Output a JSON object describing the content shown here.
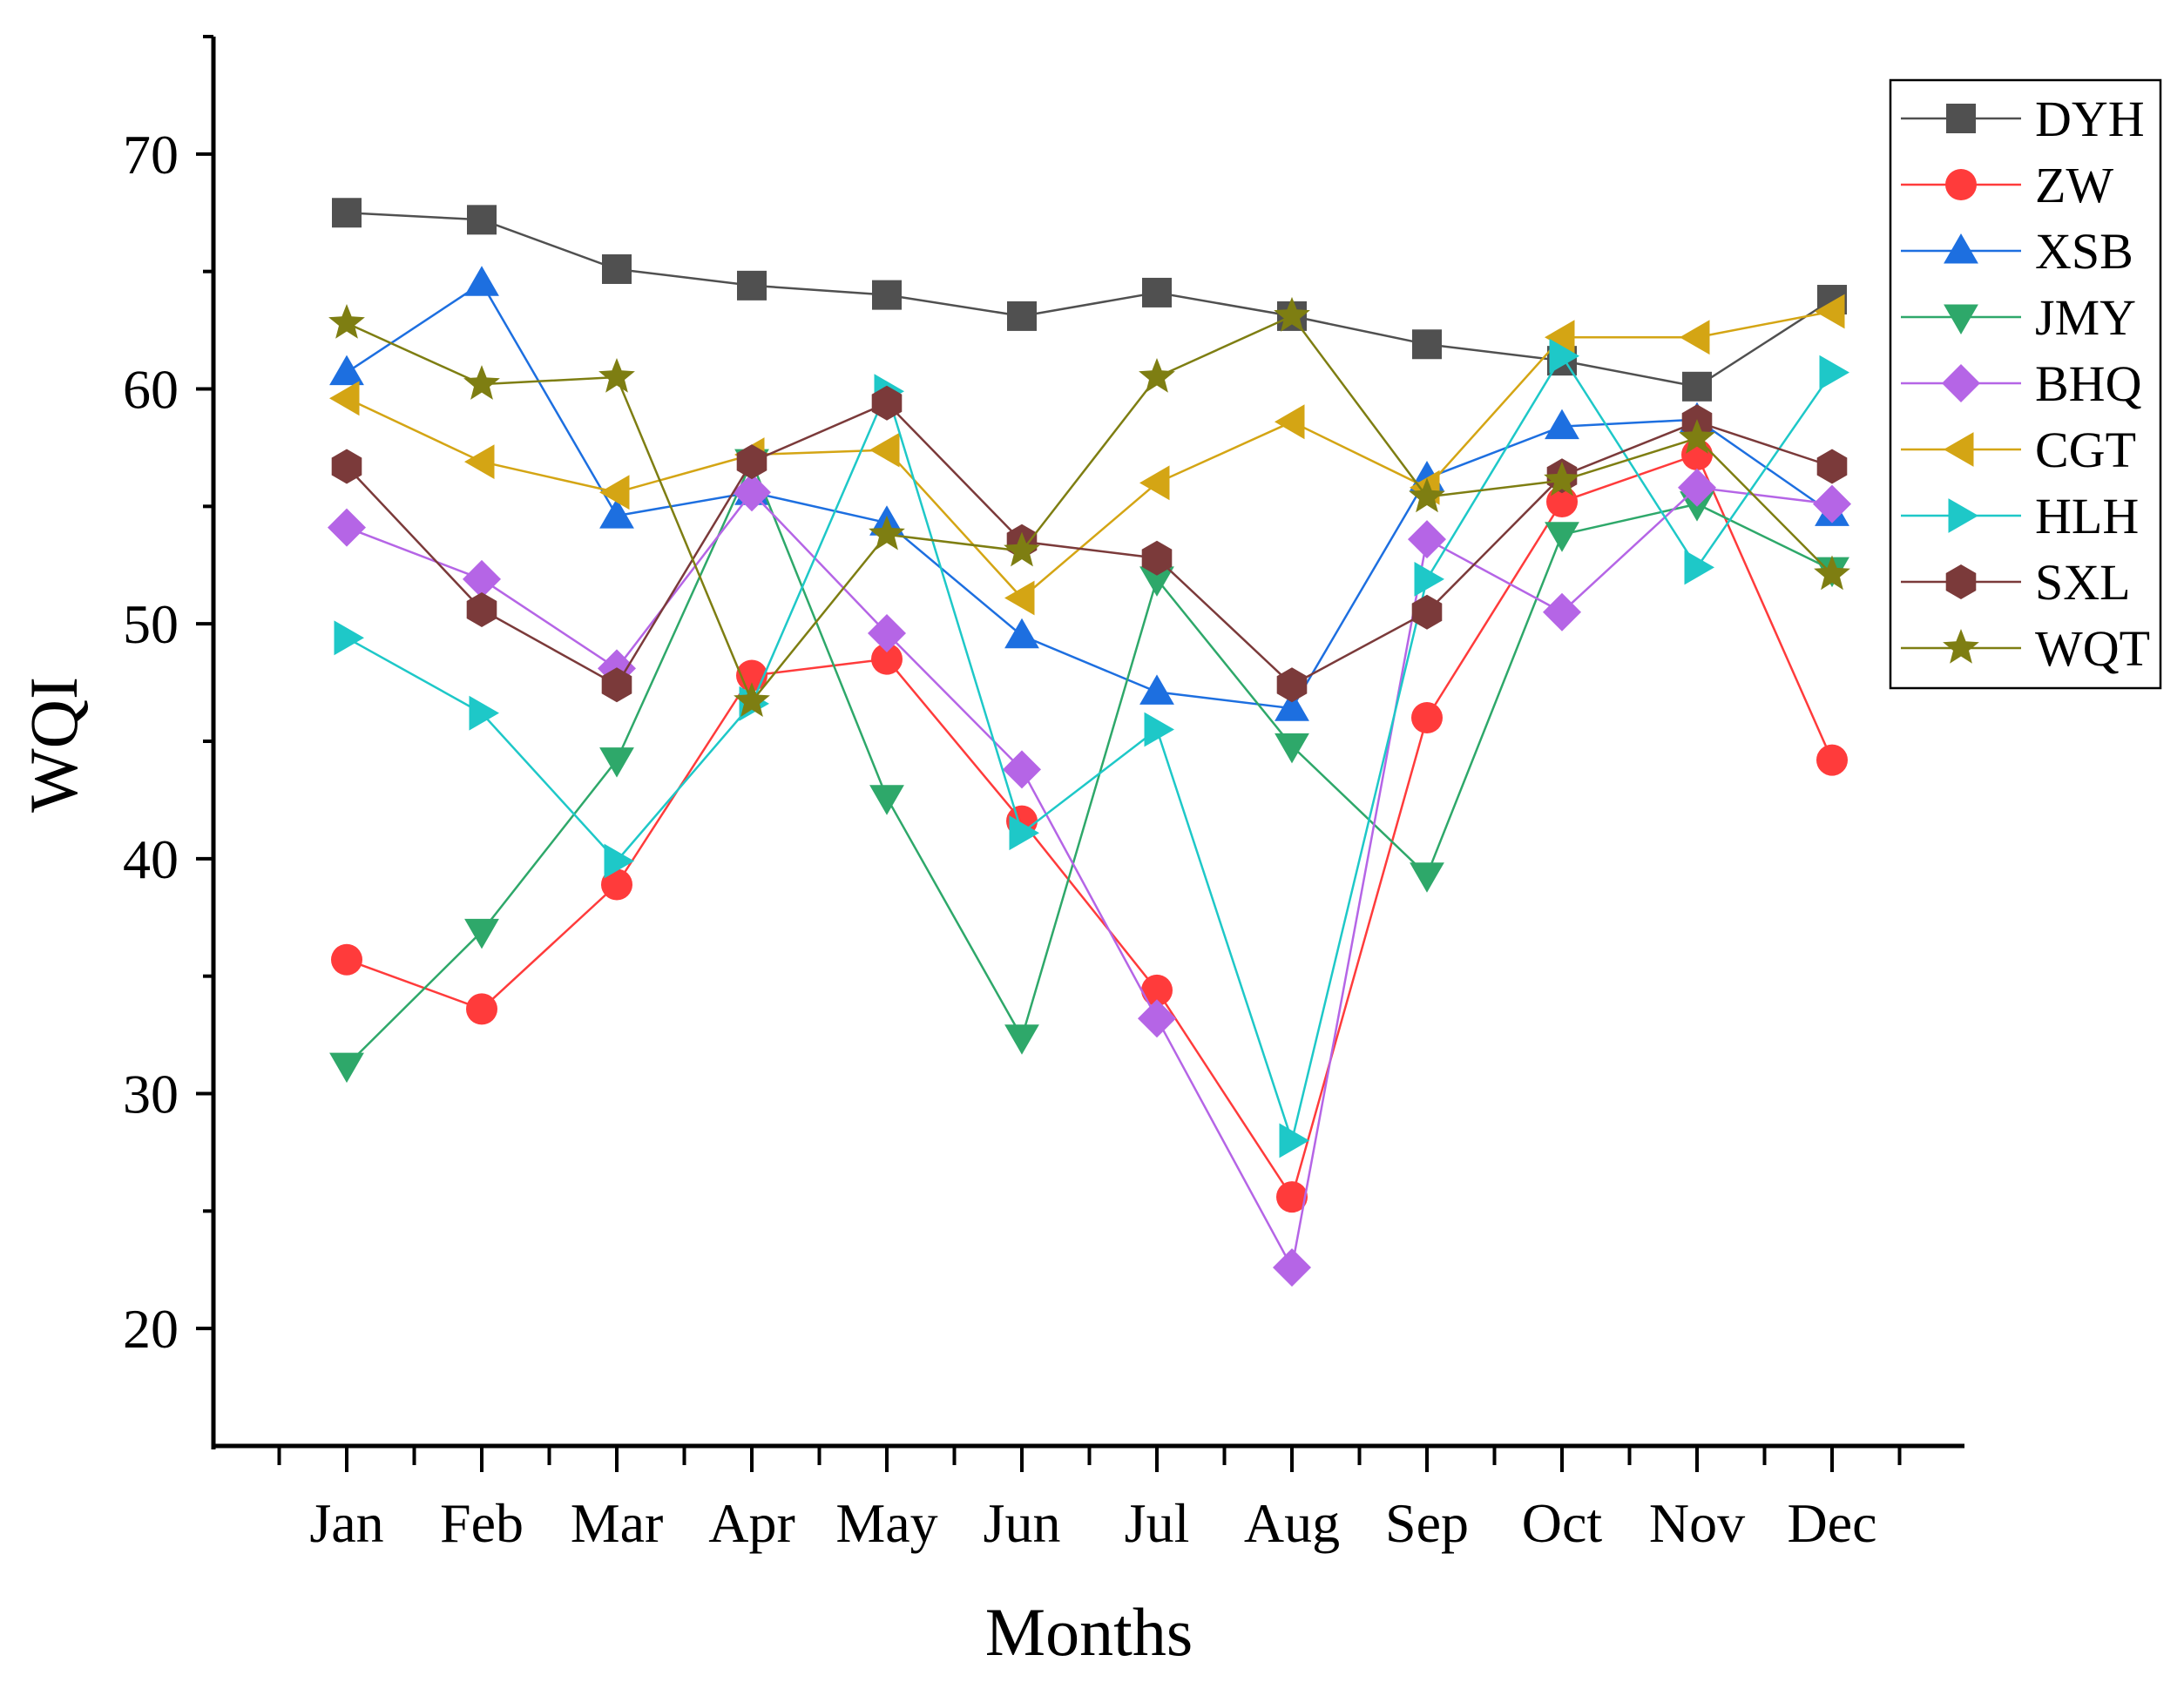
{
  "chart_data": {
    "type": "line",
    "title": "",
    "xlabel": "Months",
    "ylabel": "WQI",
    "categories": [
      "Jan",
      "Feb",
      "Mar",
      "Apr",
      "May",
      "Jun",
      "Jul",
      "Aug",
      "Sep",
      "Oct",
      "Nov",
      "Dec"
    ],
    "ylim": [
      15,
      75
    ],
    "yticks": [
      20,
      30,
      40,
      50,
      60,
      70
    ],
    "grid": false,
    "legend_position": "top-right",
    "series": [
      {
        "name": "DYH",
        "color": "#505050",
        "marker": "square",
        "values": [
          67.5,
          67.2,
          65.1,
          64.4,
          64.0,
          63.1,
          64.1,
          63.1,
          61.9,
          61.2,
          60.1,
          63.8
        ]
      },
      {
        "name": "ZW",
        "color": "#ff3b3b",
        "marker": "circle",
        "values": [
          35.7,
          33.6,
          38.9,
          47.8,
          48.5,
          41.6,
          34.4,
          25.6,
          46.0,
          55.2,
          57.2,
          44.2
        ]
      },
      {
        "name": "XSB",
        "color": "#1d6fe0",
        "marker": "triangle-up",
        "values": [
          60.7,
          64.5,
          54.6,
          55.6,
          54.3,
          49.5,
          47.1,
          46.4,
          56.2,
          58.4,
          58.7,
          54.7
        ]
      },
      {
        "name": "JMY",
        "color": "#2ea86a",
        "marker": "triangle-down",
        "values": [
          31.2,
          36.9,
          44.2,
          56.9,
          42.6,
          32.4,
          51.9,
          44.8,
          39.3,
          53.8,
          55.1,
          52.3
        ]
      },
      {
        "name": "BHQ",
        "color": "#b565e6",
        "marker": "diamond",
        "values": [
          54.1,
          51.9,
          48.1,
          55.6,
          49.6,
          43.8,
          33.2,
          22.6,
          53.6,
          50.5,
          55.8,
          55.1
        ]
      },
      {
        "name": "CGT",
        "color": "#d4a514",
        "marker": "triangle-left",
        "values": [
          59.6,
          56.9,
          55.6,
          57.2,
          57.4,
          51.1,
          56.0,
          58.6,
          55.8,
          62.2,
          62.2,
          63.3
        ]
      },
      {
        "name": "HLH",
        "color": "#1ec8c8",
        "marker": "triangle-right",
        "values": [
          49.4,
          46.2,
          39.9,
          46.6,
          59.9,
          41.1,
          45.5,
          28.0,
          51.9,
          61.4,
          52.4,
          60.7
        ]
      },
      {
        "name": "SXL",
        "color": "#7b3a3a",
        "marker": "hexagon",
        "values": [
          56.7,
          50.6,
          47.4,
          56.9,
          59.4,
          53.5,
          52.8,
          47.4,
          50.5,
          56.3,
          58.6,
          56.7
        ]
      },
      {
        "name": "WQT",
        "color": "#7e7e12",
        "marker": "star",
        "values": [
          62.8,
          60.2,
          60.5,
          46.7,
          53.8,
          53.1,
          60.5,
          63.1,
          55.4,
          56.1,
          57.9,
          52.1
        ]
      }
    ]
  }
}
